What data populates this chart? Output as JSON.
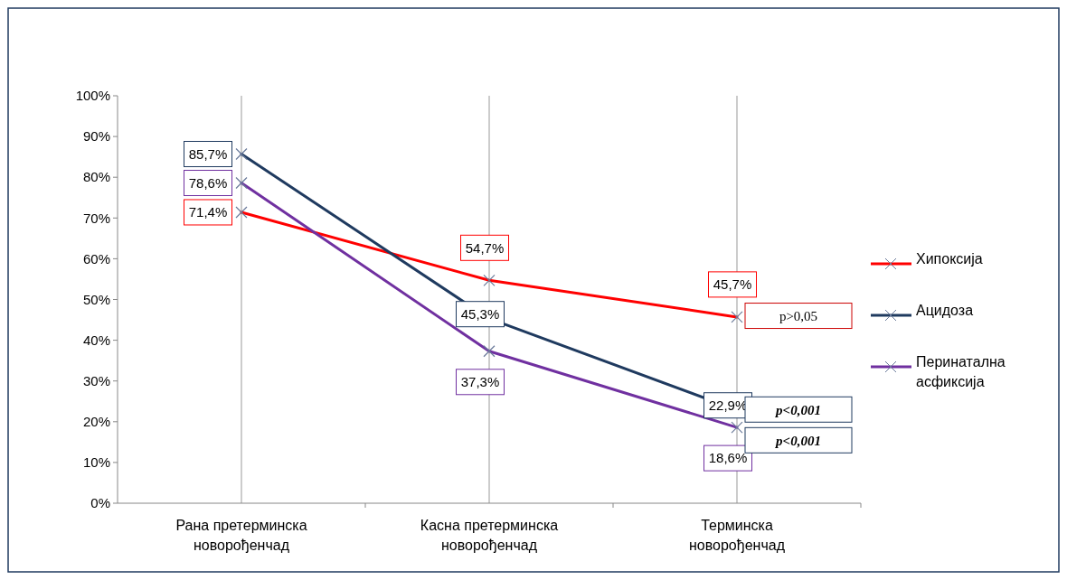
{
  "chart_data": {
    "type": "line",
    "categories": [
      "Рана претерминска новорођенчад",
      "Касна претерминска новорођенчад",
      "Терминска новорођенчад"
    ],
    "series": [
      {
        "name": "Хипоксија",
        "color": "#ff0000",
        "values": [
          71.4,
          54.7,
          45.7
        ],
        "value_labels": [
          "71,4%",
          "54,7%",
          "45,7%"
        ]
      },
      {
        "name": "Ацидоза",
        "color": "#1f3a5f",
        "values": [
          85.7,
          45.3,
          22.9
        ],
        "value_labels": [
          "85,7%",
          "45,3%",
          "22,9%"
        ]
      },
      {
        "name": "Перинатална асфиксија",
        "color": "#7030a0",
        "values": [
          78.6,
          37.3,
          18.6
        ],
        "value_labels": [
          "78,6%",
          "37,3%",
          "18,6%"
        ]
      }
    ],
    "ylim": [
      0,
      100
    ],
    "yticks": [
      {
        "value": 0,
        "label": "0%"
      },
      {
        "value": 10,
        "label": "10%"
      },
      {
        "value": 20,
        "label": "20%"
      },
      {
        "value": 30,
        "label": "30%"
      },
      {
        "value": 40,
        "label": "40%"
      },
      {
        "value": 50,
        "label": "50%"
      },
      {
        "value": 60,
        "label": "60%"
      },
      {
        "value": 70,
        "label": "70%"
      },
      {
        "value": 80,
        "label": "80%"
      },
      {
        "value": 90,
        "label": "90%"
      },
      {
        "value": 100,
        "label": "100%"
      }
    ],
    "grid": "x",
    "legend": "right",
    "marker": "cross",
    "line_style": "solid",
    "annotations": [
      "p>0,05",
      "p<0,001",
      "p<0,001"
    ]
  }
}
